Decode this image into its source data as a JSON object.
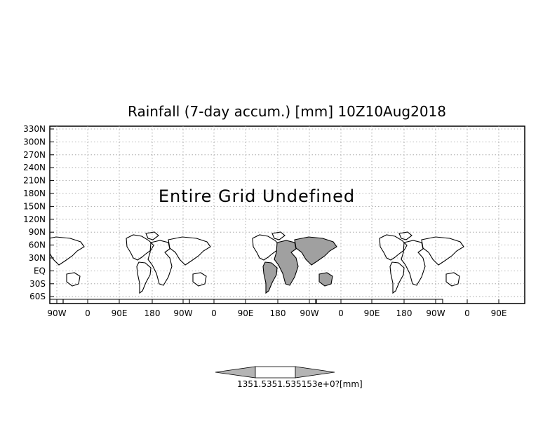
{
  "title": "Rainfall (7-day accum.) [mm] 10Z10Aug2018",
  "message": "Entire Grid Undefined",
  "y_ticks": [
    "330N",
    "300N",
    "270N",
    "240N",
    "210N",
    "180N",
    "150N",
    "120N",
    "90N",
    "60N",
    "30N",
    "EQ",
    "30S",
    "60S"
  ],
  "x_ticks": [
    "90W",
    "0",
    "90E",
    "180",
    "90W",
    "0",
    "90E",
    "180",
    "90W",
    "0",
    "90E",
    "180",
    "90W",
    "0",
    "90E"
  ],
  "colorbar": {
    "label": "1351.5351.535153e+0?[mm]",
    "colors": {
      "low": "#b4b4b4",
      "mid": "#ffffff",
      "high": "#b4b4b4"
    }
  },
  "colors": {
    "land_fill": "#a0a0a0",
    "coast": "#000000",
    "grid": "#9a9a9a"
  }
}
